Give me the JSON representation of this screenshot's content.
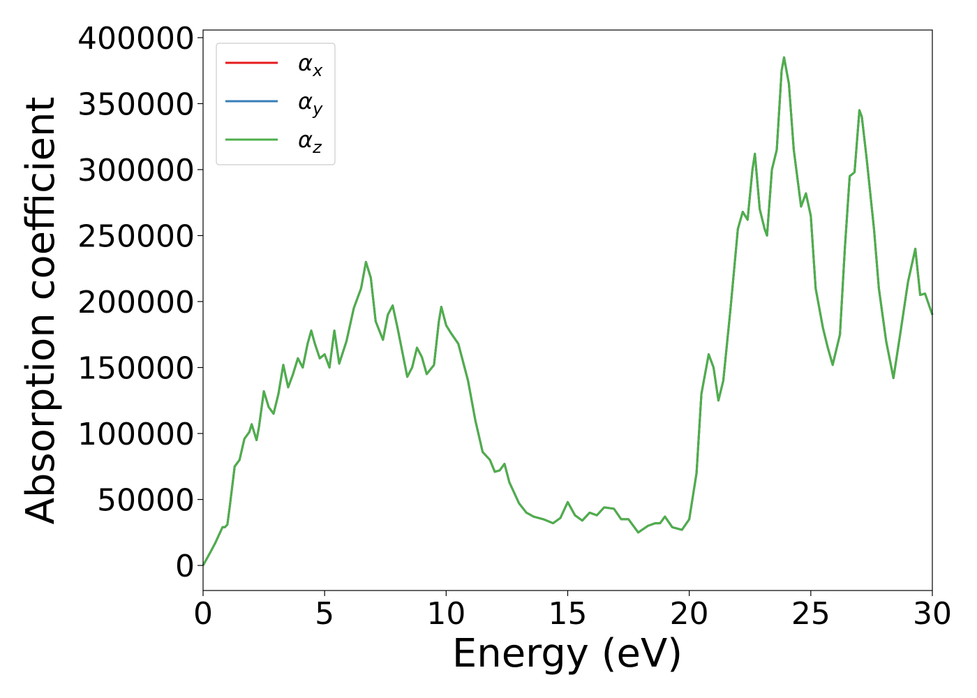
{
  "chart_data": {
    "type": "line",
    "x_label": "Energy (eV)",
    "y_label": "Absorption coefficient",
    "x": [
      0,
      0.3,
      0.5,
      0.8,
      0.9,
      1.0,
      1.1,
      1.3,
      1.5,
      1.7,
      1.9,
      2.0,
      2.2,
      2.3,
      2.5,
      2.7,
      2.9,
      3.1,
      3.3,
      3.5,
      3.7,
      3.9,
      4.1,
      4.3,
      4.45,
      4.6,
      4.8,
      5.0,
      5.2,
      5.4,
      5.6,
      5.9,
      6.2,
      6.5,
      6.7,
      6.9,
      7.1,
      7.4,
      7.6,
      7.8,
      8.0,
      8.4,
      8.6,
      8.8,
      9.0,
      9.2,
      9.5,
      9.7,
      9.8,
      10.0,
      10.2,
      10.5,
      10.9,
      11.2,
      11.5,
      11.8,
      12.0,
      12.2,
      12.4,
      12.6,
      12.8,
      13.0,
      13.3,
      13.6,
      14.0,
      14.4,
      14.7,
      15.0,
      15.3,
      15.6,
      15.9,
      16.2,
      16.5,
      16.9,
      17.2,
      17.5,
      17.9,
      18.3,
      18.6,
      18.8,
      19.0,
      19.3,
      19.7,
      20.0,
      20.3,
      20.5,
      20.8,
      21.0,
      21.2,
      21.4,
      21.7,
      22.0,
      22.2,
      22.4,
      22.6,
      22.7,
      22.9,
      23.1,
      23.2,
      23.4,
      23.6,
      23.8,
      23.9,
      24.1,
      24.3,
      24.6,
      24.8,
      25.0,
      25.2,
      25.5,
      25.7,
      25.9,
      26.2,
      26.4,
      26.6,
      26.8,
      27.0,
      27.1,
      27.3,
      27.6,
      27.8,
      28.1,
      28.4,
      28.7,
      29.0,
      29.3,
      29.5,
      29.7,
      30.0
    ],
    "series": [
      {
        "name": "αx",
        "color": "#e41a1c",
        "values": [
          0,
          10000,
          17000,
          29000,
          29000,
          31000,
          45000,
          75000,
          80000,
          96000,
          101000,
          107000,
          95000,
          105000,
          132000,
          120000,
          115000,
          130000,
          152000,
          135000,
          145000,
          157000,
          150000,
          168000,
          178000,
          168000,
          157000,
          160000,
          150000,
          178000,
          153000,
          170000,
          195000,
          210000,
          230000,
          218000,
          185000,
          171000,
          190000,
          197000,
          180000,
          143000,
          150000,
          165000,
          158000,
          145000,
          152000,
          185000,
          196000,
          182000,
          176000,
          168000,
          140000,
          110000,
          86000,
          80000,
          71000,
          72000,
          77000,
          63000,
          55000,
          47000,
          40000,
          37000,
          35000,
          32000,
          36000,
          48000,
          38000,
          34000,
          40000,
          38000,
          44000,
          43000,
          35000,
          35000,
          25000,
          30000,
          32000,
          32000,
          37000,
          29000,
          27000,
          35000,
          70000,
          130000,
          160000,
          150000,
          125000,
          140000,
          195000,
          255000,
          268000,
          262000,
          300000,
          312000,
          270000,
          255000,
          250000,
          300000,
          315000,
          375000,
          385000,
          365000,
          315000,
          272000,
          282000,
          265000,
          210000,
          180000,
          165000,
          152000,
          175000,
          240000,
          295000,
          298000,
          345000,
          340000,
          308000,
          255000,
          210000,
          170000,
          142000,
          178000,
          215000,
          240000,
          205000,
          206000,
          190000
        ]
      },
      {
        "name": "αy",
        "color": "#377eb8",
        "values": [
          0,
          10000,
          17000,
          29000,
          29000,
          31000,
          45000,
          75000,
          80000,
          96000,
          101000,
          107000,
          95000,
          105000,
          132000,
          120000,
          115000,
          130000,
          152000,
          135000,
          145000,
          157000,
          150000,
          168000,
          178000,
          168000,
          157000,
          160000,
          150000,
          178000,
          153000,
          170000,
          195000,
          210000,
          230000,
          218000,
          185000,
          171000,
          190000,
          197000,
          180000,
          143000,
          150000,
          165000,
          158000,
          145000,
          152000,
          185000,
          196000,
          182000,
          176000,
          168000,
          140000,
          110000,
          86000,
          80000,
          71000,
          72000,
          77000,
          63000,
          55000,
          47000,
          40000,
          37000,
          35000,
          32000,
          36000,
          48000,
          38000,
          34000,
          40000,
          38000,
          44000,
          43000,
          35000,
          35000,
          25000,
          30000,
          32000,
          32000,
          37000,
          29000,
          27000,
          35000,
          70000,
          130000,
          160000,
          150000,
          125000,
          140000,
          195000,
          255000,
          268000,
          262000,
          300000,
          312000,
          270000,
          255000,
          250000,
          300000,
          315000,
          375000,
          385000,
          365000,
          315000,
          272000,
          282000,
          265000,
          210000,
          180000,
          165000,
          152000,
          175000,
          240000,
          295000,
          298000,
          345000,
          340000,
          308000,
          255000,
          210000,
          170000,
          142000,
          178000,
          215000,
          240000,
          205000,
          206000,
          190000
        ]
      },
      {
        "name": "αz",
        "color": "#4daf4a",
        "values": [
          0,
          10000,
          17000,
          29000,
          29000,
          31000,
          45000,
          75000,
          80000,
          96000,
          101000,
          107000,
          95000,
          105000,
          132000,
          120000,
          115000,
          130000,
          152000,
          135000,
          145000,
          157000,
          150000,
          168000,
          178000,
          168000,
          157000,
          160000,
          150000,
          178000,
          153000,
          170000,
          195000,
          210000,
          230000,
          218000,
          185000,
          171000,
          190000,
          197000,
          180000,
          143000,
          150000,
          165000,
          158000,
          145000,
          152000,
          185000,
          196000,
          182000,
          176000,
          168000,
          140000,
          110000,
          86000,
          80000,
          71000,
          72000,
          77000,
          63000,
          55000,
          47000,
          40000,
          37000,
          35000,
          32000,
          36000,
          48000,
          38000,
          34000,
          40000,
          38000,
          44000,
          43000,
          35000,
          35000,
          25000,
          30000,
          32000,
          32000,
          37000,
          29000,
          27000,
          35000,
          70000,
          130000,
          160000,
          150000,
          125000,
          140000,
          195000,
          255000,
          268000,
          262000,
          300000,
          312000,
          270000,
          255000,
          250000,
          300000,
          315000,
          375000,
          385000,
          365000,
          315000,
          272000,
          282000,
          265000,
          210000,
          180000,
          165000,
          152000,
          175000,
          240000,
          295000,
          298000,
          345000,
          340000,
          308000,
          255000,
          210000,
          170000,
          142000,
          178000,
          215000,
          240000,
          205000,
          206000,
          190000
        ]
      }
    ],
    "xlim": [
      0,
      30
    ],
    "xticks": [
      0,
      5,
      10,
      15,
      20,
      25,
      30
    ],
    "ylim": [
      -19000,
      405800
    ],
    "yticks": [
      0,
      50000,
      100000,
      150000,
      200000,
      250000,
      300000,
      350000,
      400000
    ],
    "legend": "upper left"
  }
}
